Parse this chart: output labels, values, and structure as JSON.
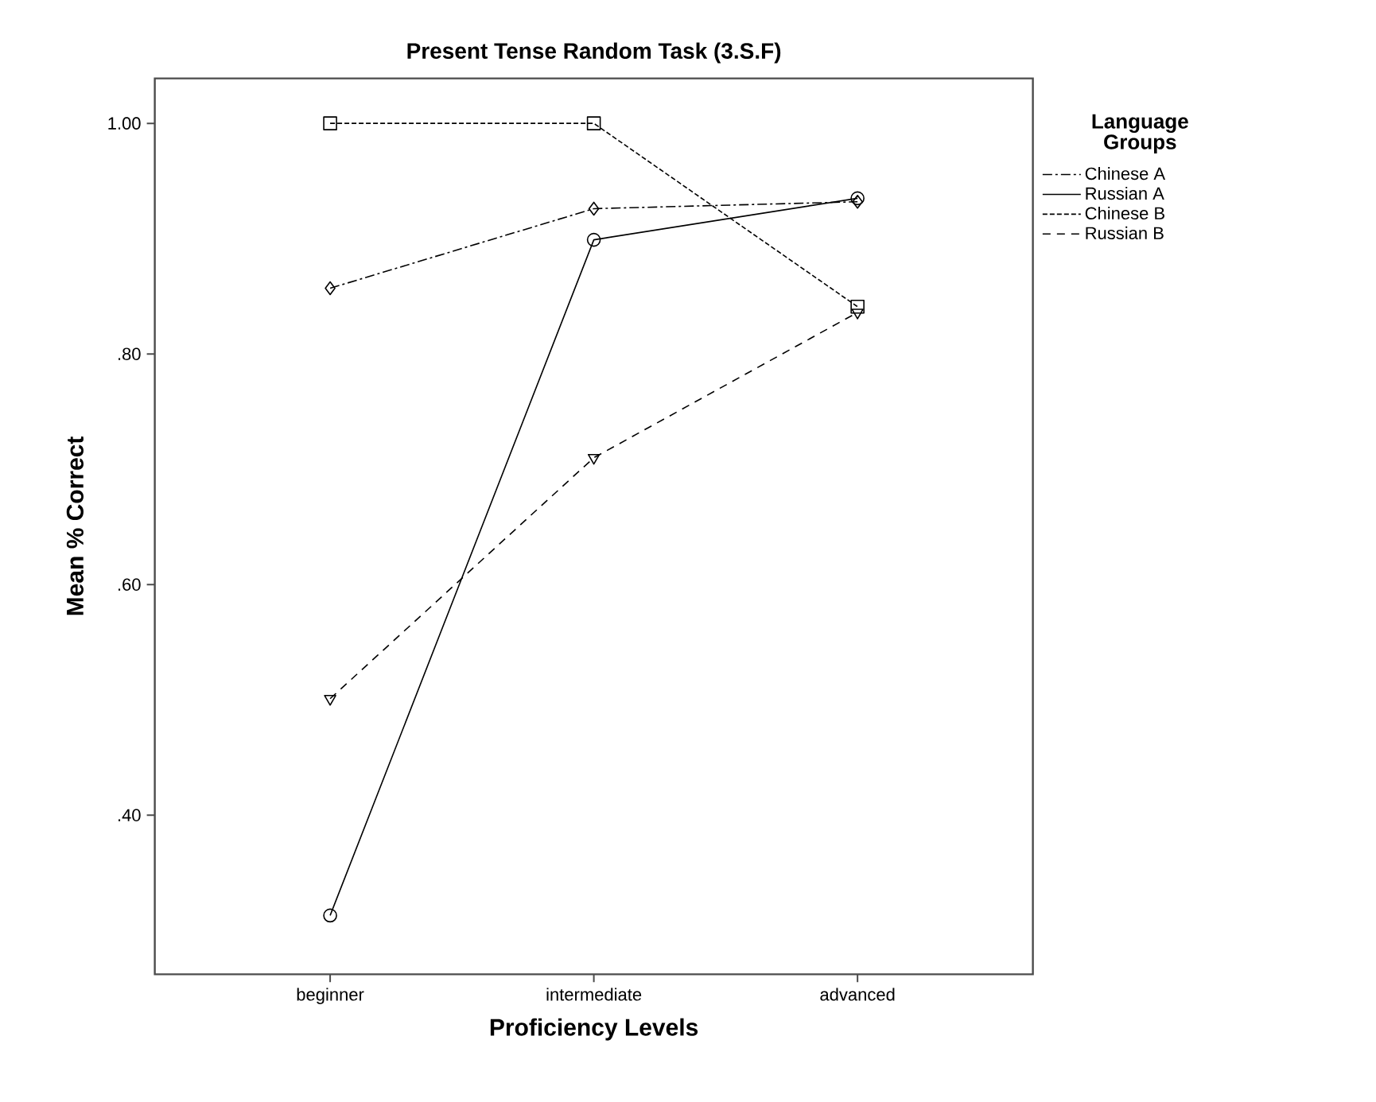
{
  "chart_data": {
    "type": "line",
    "title": "Present Tense Random Task (3.S.F)",
    "xlabel": "Proficiency Levels",
    "ylabel": "Mean % Correct",
    "legend_title": "Language Groups",
    "categories": [
      "beginner",
      "intermediate",
      "advanced"
    ],
    "series": [
      {
        "name": "Chinese A",
        "color": "#000000",
        "values": [
          0.857,
          0.926,
          0.932
        ],
        "marker": "diamond",
        "line_style": "dashdot"
      },
      {
        "name": "Russian A",
        "color": "#000000",
        "values": [
          0.313,
          0.899,
          0.935
        ],
        "marker": "circle",
        "line_style": "solid"
      },
      {
        "name": "Chinese B",
        "color": "#000000",
        "values": [
          1.0,
          1.0,
          0.841
        ],
        "marker": "square",
        "line_style": "dotted"
      },
      {
        "name": "Russian B",
        "color": "#000000",
        "values": [
          0.501,
          0.71,
          0.836
        ],
        "marker": "triangle",
        "line_style": "dashed"
      }
    ],
    "ylim": [
      0.262,
      1.039
    ],
    "yticks": [
      {
        "value": 0.4,
        "label": ".40"
      },
      {
        "value": 0.6,
        "label": ".60"
      },
      {
        "value": 0.8,
        "label": ".80"
      },
      {
        "value": 1.0,
        "label": "1.00"
      }
    ],
    "grid": false,
    "legend": "top right"
  }
}
